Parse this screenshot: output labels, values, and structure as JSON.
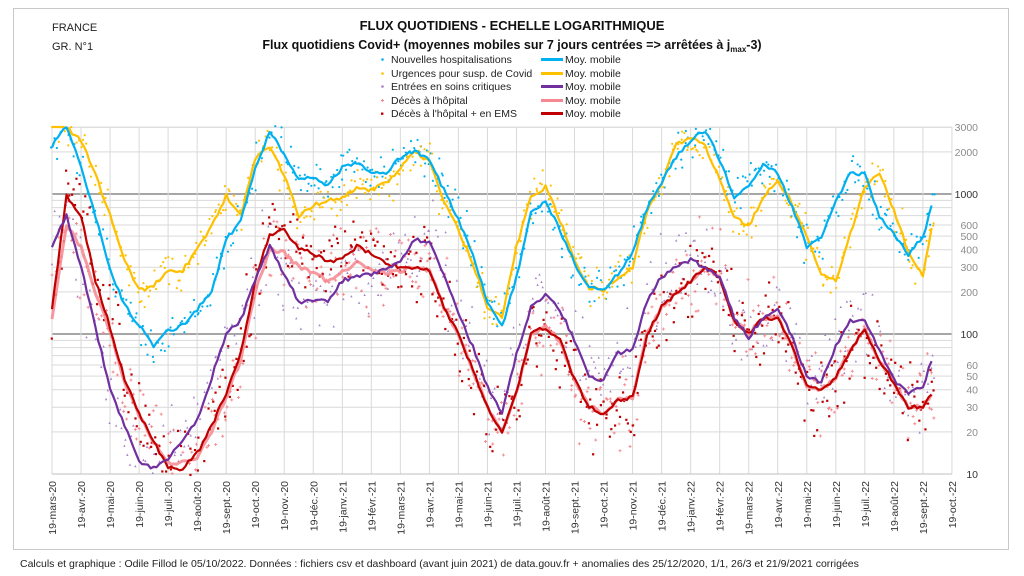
{
  "header": {
    "country": "FRANCE",
    "graph_number": "GR. N°1"
  },
  "footer": "Calculs et graphique : Odile Fillod le 05/10/2022.  Données : fichiers csv et dashboard (avant juin 2021)  de data.gouv.fr + anomalies des 25/12/2020,  1/1, 26/3  et 21/9/2021  corrigées",
  "chart_data": {
    "type": "line",
    "title": "FLUX QUOTIDIENS - ECHELLE LOGARITHMIQUE",
    "subtitle_main": "Flux quotidiens Covid+ (moyennes mobiles sur 7 jours centrées => arrêtées à j",
    "subtitle_sub": "max",
    "subtitle_end": "-3)",
    "yscale": "log",
    "ylim": [
      10,
      3000
    ],
    "y_ticks": [
      3000,
      2000,
      1000,
      600,
      500,
      400,
      300,
      200,
      100,
      60,
      50,
      40,
      30,
      20,
      10
    ],
    "y_major_lines": [
      100,
      1000
    ],
    "grid": true,
    "legend_placement": "top-center",
    "x_tick_labels": [
      "19-mars-20",
      "19-avr.-20",
      "19-mai-20",
      "19-juin-20",
      "19-juil.-20",
      "19-août-20",
      "19-sept.-20",
      "19-oct.-20",
      "19-nov.-20",
      "19-déc.-20",
      "19-janv.-21",
      "19-févr.-21",
      "19-mars-21",
      "19-avr.-21",
      "19-mai-21",
      "19-juin-21",
      "19-juil.-21",
      "19-août-21",
      "19-sept.-21",
      "19-oct.-21",
      "19-nov.-21",
      "19-déc.-21",
      "19-janv.-22",
      "19-févr.-22",
      "19-mars-22",
      "19-avr.-22",
      "19-mai-22",
      "19-juin-22",
      "19-juil.-22",
      "19-août-22",
      "19-sept.-22",
      "19-oct.-22"
    ],
    "x_months_since_start": [
      0,
      0.5,
      1,
      1.5,
      2,
      2.5,
      3,
      3.5,
      4,
      4.5,
      5,
      5.5,
      6,
      6.5,
      7,
      7.5,
      8,
      8.5,
      9,
      9.5,
      10,
      10.5,
      11,
      11.5,
      12,
      12.5,
      13,
      13.5,
      14,
      14.5,
      15,
      15.5,
      16,
      16.5,
      17,
      17.5,
      18,
      18.5,
      19,
      19.5,
      20,
      20.5,
      21,
      21.5,
      22,
      22.5,
      23,
      23.5,
      24,
      24.5,
      25,
      25.5,
      26,
      26.5,
      27,
      27.5,
      28,
      28.5,
      29,
      29.5,
      30,
      30.3
    ],
    "series": [
      {
        "key": "hosp",
        "name": "Nouvelles hospitalisations",
        "ma_name": "Moy. mobile",
        "color": "#00B0F0",
        "marker": "dot",
        "values": [
          2200,
          3000,
          1600,
          700,
          290,
          160,
          115,
          82,
          105,
          115,
          150,
          200,
          470,
          650,
          1500,
          2800,
          1900,
          1300,
          1350,
          1150,
          1550,
          1670,
          1400,
          1400,
          1830,
          2050,
          1760,
          1070,
          650,
          380,
          167,
          112,
          255,
          730,
          900,
          550,
          320,
          215,
          205,
          270,
          380,
          800,
          1220,
          1830,
          2400,
          2850,
          1760,
          950,
          1120,
          1670,
          1400,
          800,
          420,
          490,
          900,
          1400,
          1400,
          690,
          520,
          370,
          490,
          800
        ]
      },
      {
        "key": "urg",
        "name": "Urgences pour susp. de Covid",
        "ma_name": "Moy. mobile",
        "color": "#FFC000",
        "marker": "dot",
        "values": [
          3500,
          3000,
          2400,
          1370,
          700,
          340,
          205,
          220,
          285,
          285,
          400,
          600,
          970,
          700,
          1760,
          2200,
          1370,
          700,
          830,
          900,
          950,
          1120,
          1070,
          1200,
          1500,
          2050,
          1670,
          900,
          550,
          320,
          155,
          130,
          420,
          950,
          1120,
          650,
          340,
          215,
          205,
          255,
          300,
          770,
          1200,
          2300,
          2500,
          2200,
          1260,
          690,
          580,
          950,
          1260,
          850,
          490,
          270,
          240,
          520,
          1120,
          1400,
          770,
          380,
          260,
          580
        ]
      },
      {
        "key": "rea",
        "name": "Entrées en soins critiques",
        "ma_name": "Moy. mobile",
        "color": "#7030A0",
        "marker": "triangle",
        "values": [
          430,
          700,
          300,
          112,
          40,
          22,
          12,
          11,
          13,
          17,
          24,
          49,
          100,
          125,
          240,
          420,
          270,
          170,
          170,
          175,
          240,
          255,
          270,
          285,
          340,
          470,
          445,
          270,
          140,
          81,
          42,
          27,
          73,
          155,
          195,
          150,
          90,
          49,
          47,
          73,
          77,
          175,
          255,
          300,
          340,
          295,
          255,
          130,
          95,
          130,
          150,
          95,
          49,
          45,
          81,
          125,
          125,
          77,
          47,
          38,
          42,
          65
        ]
      },
      {
        "key": "dchosp",
        "name": "Décès à l'hôpital",
        "ma_name": "Moy. mobile",
        "color": "#F4878F",
        "marker": "plus",
        "values": [
          130,
          600,
          420,
          195,
          105,
          45,
          26,
          17,
          12,
          12,
          13,
          20,
          35,
          65,
          200,
          400,
          380,
          300,
          270,
          240,
          280,
          320,
          290,
          270,
          280,
          300,
          285,
          155,
          100,
          55,
          30,
          20,
          38,
          100,
          112,
          90,
          47,
          30,
          27,
          34,
          35,
          100,
          155,
          195,
          240,
          300,
          255,
          125,
          100,
          130,
          130,
          81,
          42,
          40,
          49,
          77,
          107,
          65,
          45,
          30,
          30,
          38
        ]
      },
      {
        "key": "dcems",
        "name": "Décès à l'hôpital + en EMS",
        "ma_name": "Moy. mobile",
        "color": "#C00000",
        "marker": "square",
        "values": [
          150,
          970,
          700,
          240,
          112,
          47,
          27,
          17,
          11,
          11,
          14,
          22,
          38,
          73,
          240,
          520,
          550,
          400,
          380,
          320,
          355,
          420,
          380,
          320,
          300,
          300,
          285,
          155,
          100,
          55,
          30,
          20,
          38,
          100,
          112,
          90,
          47,
          30,
          27,
          34,
          35,
          100,
          155,
          195,
          240,
          300,
          255,
          125,
          100,
          130,
          130,
          81,
          42,
          40,
          49,
          77,
          107,
          65,
          45,
          30,
          30,
          38
        ]
      }
    ]
  }
}
